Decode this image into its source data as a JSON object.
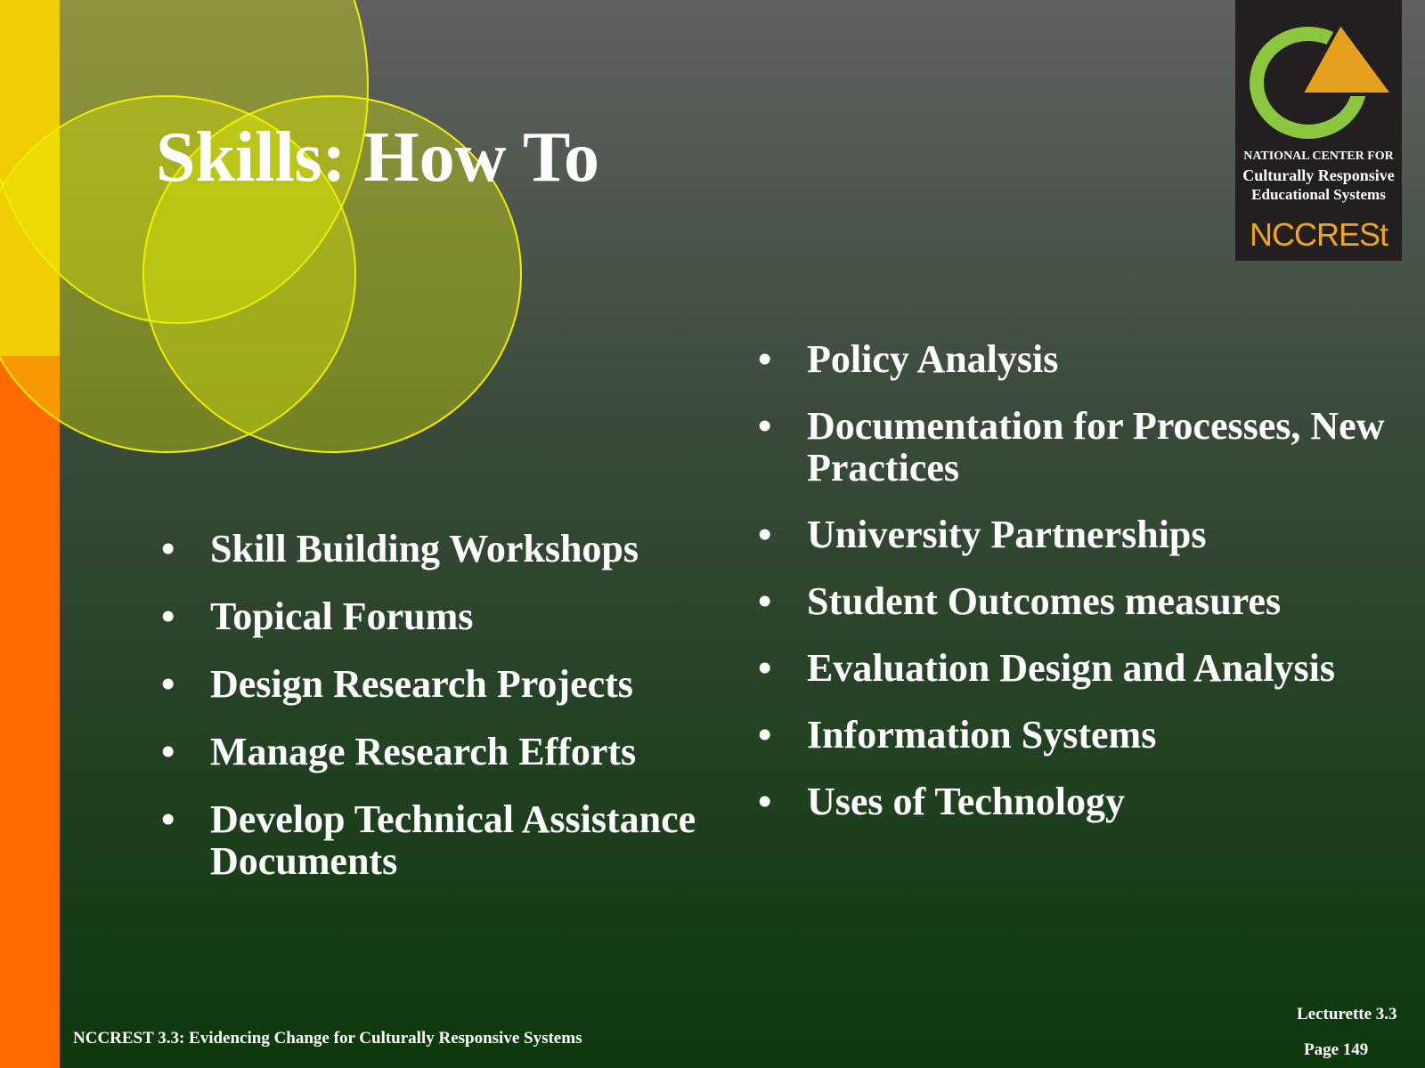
{
  "slide": {
    "title": "Skills:  How To",
    "left_items": [
      "Skill Building Workshops",
      "Topical Forums",
      "Design Research Projects",
      "Manage Research Efforts",
      "Develop Technical Assistance Documents"
    ],
    "right_items": [
      "Policy Analysis",
      "Documentation for Processes, New Practices",
      "University Partnerships",
      "Student Outcomes measures",
      "Evaluation Design and Analysis",
      "Information Systems",
      "Uses of  Technology"
    ],
    "bullet_glyph": "•"
  },
  "logo": {
    "line1": "NATIONAL CENTER FOR",
    "line2": "Culturally Responsive",
    "line3": "Educational Systems",
    "brand": "NCCRESt",
    "icon": "ring-and-triangle-logo-icon"
  },
  "footer": {
    "course": "NCCREST 3.3:  Evidencing Change for Culturally Responsive Systems",
    "lecturette": "Lecturette 3.3",
    "page": "Page 149"
  },
  "colors": {
    "accent_yellow": "#f8bb08",
    "accent_orange": "#ff6a00",
    "venn_fill": "#e6f000",
    "logo_green": "#8cc63f",
    "logo_gold": "#e5a11e",
    "text": "#ffffff"
  }
}
